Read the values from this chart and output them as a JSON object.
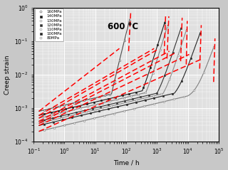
{
  "title": "600 °C",
  "xlabel": "Time / h",
  "ylabel": "Creep strain",
  "xlim": [
    0.1,
    100000.0
  ],
  "ylim": [
    0.0001,
    1.0
  ],
  "legend_labels": [
    "160MPa",
    "140MPa",
    "130MPa",
    "120MPa",
    "110MPa",
    "100MPa",
    "80MPa"
  ],
  "curves": [
    {
      "t0": 0.15,
      "tf": 130,
      "e0": 0.0008,
      "ef": 0.45,
      "onset": 0.8,
      "n": 0.22,
      "marker": "o",
      "mfc": "white",
      "gray": 0.3
    },
    {
      "t0": 0.15,
      "tf": 1800,
      "e0": 0.0006,
      "ef": 0.38,
      "onset": 0.82,
      "n": 0.22,
      "marker": "s",
      "mfc": "black",
      "gray": 0.1
    },
    {
      "t0": 0.15,
      "tf": 2200,
      "e0": 0.0005,
      "ef": 0.3,
      "onset": 0.83,
      "n": 0.22,
      "marker": "o",
      "mfc": "white",
      "gray": 0.5
    },
    {
      "t0": 0.15,
      "tf": 6000,
      "e0": 0.0004,
      "ef": 0.25,
      "onset": 0.83,
      "n": 0.22,
      "marker": "s",
      "mfc": "black",
      "gray": 0.2
    },
    {
      "t0": 0.15,
      "tf": 9000,
      "e0": 0.00035,
      "ef": 0.22,
      "onset": 0.84,
      "n": 0.22,
      "marker": "o",
      "mfc": "white",
      "gray": 0.55
    },
    {
      "t0": 0.15,
      "tf": 25000.0,
      "e0": 0.0003,
      "ef": 0.18,
      "onset": 0.84,
      "n": 0.22,
      "marker": "s",
      "mfc": "black",
      "gray": 0.15
    },
    {
      "t0": 0.15,
      "tf": 70000.0,
      "e0": 0.0002,
      "ef": 0.07,
      "onset": 0.85,
      "n": 0.22,
      "marker": "o",
      "mfc": "white",
      "gray": 0.5
    }
  ],
  "red_diag_lines": [
    {
      "t": [
        0.15,
        60
      ],
      "e": [
        0.0008,
        0.06
      ]
    },
    {
      "t": [
        0.15,
        800
      ],
      "e": [
        0.0006,
        0.06
      ]
    },
    {
      "t": [
        0.15,
        1000
      ],
      "e": [
        0.0005,
        0.055
      ]
    },
    {
      "t": [
        0.15,
        2500
      ],
      "e": [
        0.0004,
        0.05
      ]
    },
    {
      "t": [
        0.15,
        4000
      ],
      "e": [
        0.00035,
        0.045
      ]
    },
    {
      "t": [
        0.15,
        11000.0
      ],
      "e": [
        0.0003,
        0.04
      ]
    },
    {
      "t": [
        0.15,
        30000.0
      ],
      "e": [
        0.0002,
        0.03
      ]
    }
  ],
  "red_vert_lines": [
    {
      "t": [
        120,
        140
      ],
      "e": [
        0.05,
        0.7
      ]
    },
    {
      "t": [
        1700,
        1900
      ],
      "e": [
        0.04,
        0.65
      ]
    },
    {
      "t": [
        2100,
        2400
      ],
      "e": [
        0.03,
        0.55
      ]
    },
    {
      "t": [
        5800,
        6500
      ],
      "e": [
        0.025,
        0.5
      ]
    },
    {
      "t": [
        8800,
        9500
      ],
      "e": [
        0.02,
        0.4
      ]
    },
    {
      "t": [
        24000.0,
        27000.0
      ],
      "e": [
        0.015,
        0.3
      ]
    },
    {
      "t": [
        68000.0,
        75000.0
      ],
      "e": [
        0.006,
        0.12
      ]
    }
  ]
}
